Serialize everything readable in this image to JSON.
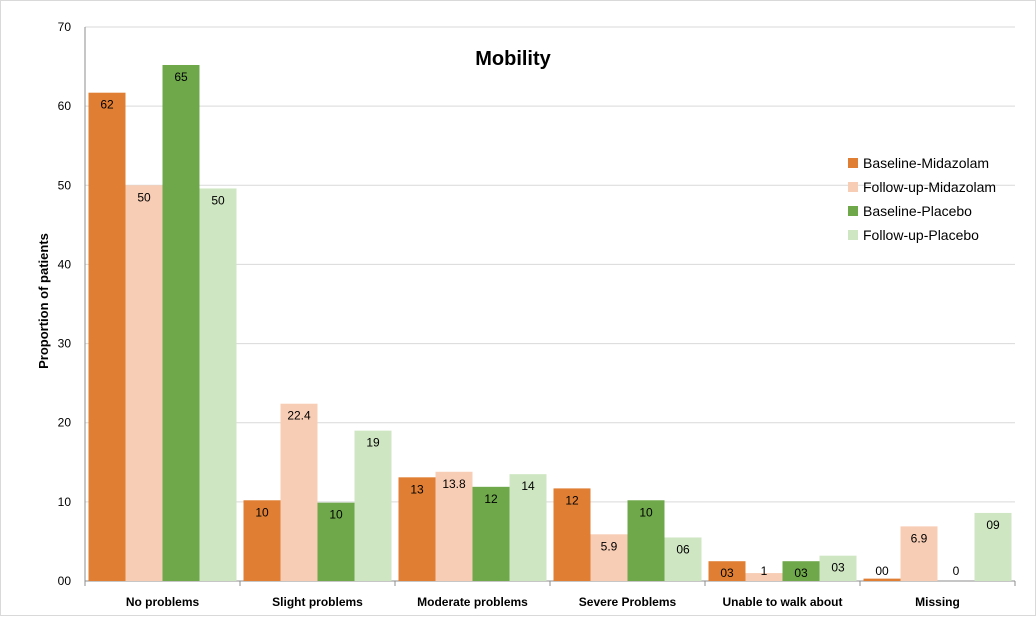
{
  "chart_data": {
    "type": "bar",
    "title": "Mobility",
    "ylabel": "Proportion of patients",
    "xlabel": "",
    "ylim": [
      0,
      70
    ],
    "yticks": [
      "00",
      "10",
      "20",
      "30",
      "40",
      "50",
      "60",
      "70"
    ],
    "grid": true,
    "legend_position": "right",
    "categories": [
      "No problems",
      "Slight problems",
      "Moderate problems",
      "Severe Problems",
      "Unable to walk about",
      "Missing"
    ],
    "series": [
      {
        "name": "Baseline-Midazolam",
        "color": "#e07f34",
        "values": [
          61.7,
          10.2,
          13.1,
          11.7,
          2.5,
          0.3
        ],
        "labels": [
          "62",
          "10",
          "13",
          "12",
          "03",
          "00"
        ]
      },
      {
        "name": "Follow-up-Midazolam",
        "color": "#f8cdb5",
        "values": [
          50.0,
          22.4,
          13.8,
          5.9,
          1.0,
          6.9
        ],
        "labels": [
          "50",
          "22.4",
          "13.8",
          "5.9",
          "1",
          "6.9"
        ]
      },
      {
        "name": "Baseline-Placebo",
        "color": "#6ea84a",
        "values": [
          65.2,
          9.9,
          11.9,
          10.2,
          2.5,
          0.0
        ],
        "labels": [
          "65",
          "10",
          "12",
          "10",
          "03",
          "0"
        ]
      },
      {
        "name": "Follow-up-Placebo",
        "color": "#cfe6c2",
        "values": [
          49.6,
          19.0,
          13.5,
          5.5,
          3.2,
          8.6
        ],
        "labels": [
          "50",
          "19",
          "14",
          "06",
          "03",
          "09"
        ]
      }
    ]
  }
}
